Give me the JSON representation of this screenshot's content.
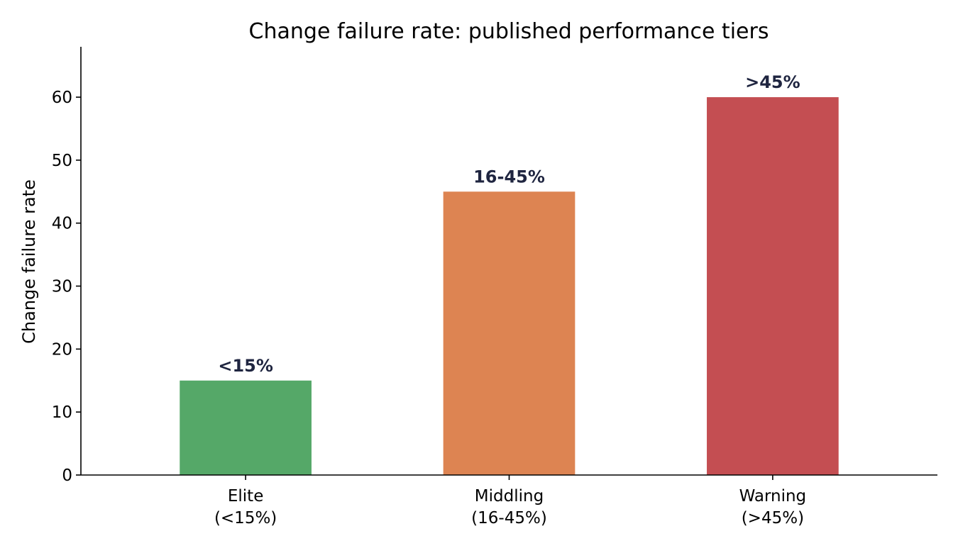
{
  "chart_data": {
    "type": "bar",
    "title": "Change failure rate: published performance tiers",
    "xlabel": "",
    "ylabel": "Change failure rate",
    "ylim": [
      0,
      68
    ],
    "yticks": [
      0,
      10,
      20,
      30,
      40,
      50,
      60
    ],
    "grid": false,
    "categories": [
      [
        "Elite",
        "(<15%)"
      ],
      [
        "Middling",
        "(16-45%)"
      ],
      [
        "Warning",
        "(>45%)"
      ]
    ],
    "values": [
      15,
      45,
      60
    ],
    "data_labels": [
      "<15%",
      "16-45%",
      ">45%"
    ],
    "colors": [
      "#55a868",
      "#dd8452",
      "#c44e52"
    ]
  }
}
